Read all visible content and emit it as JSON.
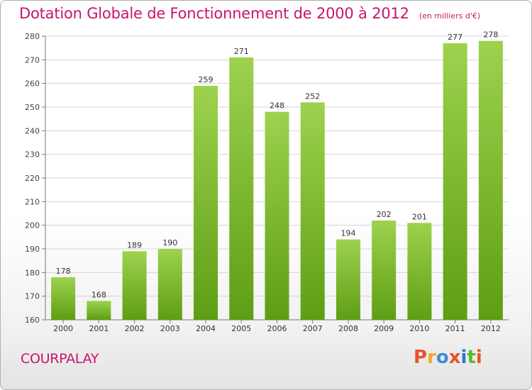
{
  "header": {
    "title": "Dotation Globale de Fonctionnement de 2000 à 2012",
    "unit": "(en milliers d'€)"
  },
  "footer": {
    "commune": "COURPALAY",
    "logo_text": "Proxiti"
  },
  "colors": {
    "title": "#c8146e",
    "bar_light": "#9dd24e",
    "bar_dark": "#5e9e14",
    "grid": "#d4d4d4",
    "logo": [
      "#e8542a",
      "#f5a623",
      "#3a8ed8",
      "#e8542a",
      "#1e7fcf",
      "#5cb82a",
      "#e8542a"
    ]
  },
  "chart_data": {
    "type": "bar",
    "categories": [
      "2000",
      "2001",
      "2002",
      "2003",
      "2004",
      "2005",
      "2006",
      "2007",
      "2008",
      "2009",
      "2010",
      "2011",
      "2012"
    ],
    "values": [
      178,
      168,
      189,
      190,
      259,
      271,
      248,
      252,
      194,
      202,
      201,
      277,
      278
    ],
    "title": "Dotation Globale de Fonctionnement de 2000 à 2012",
    "ylim": [
      160,
      280
    ],
    "yticks": [
      160,
      170,
      180,
      190,
      200,
      210,
      220,
      230,
      240,
      250,
      260,
      270,
      280
    ],
    "grid": true,
    "legend": "none"
  }
}
